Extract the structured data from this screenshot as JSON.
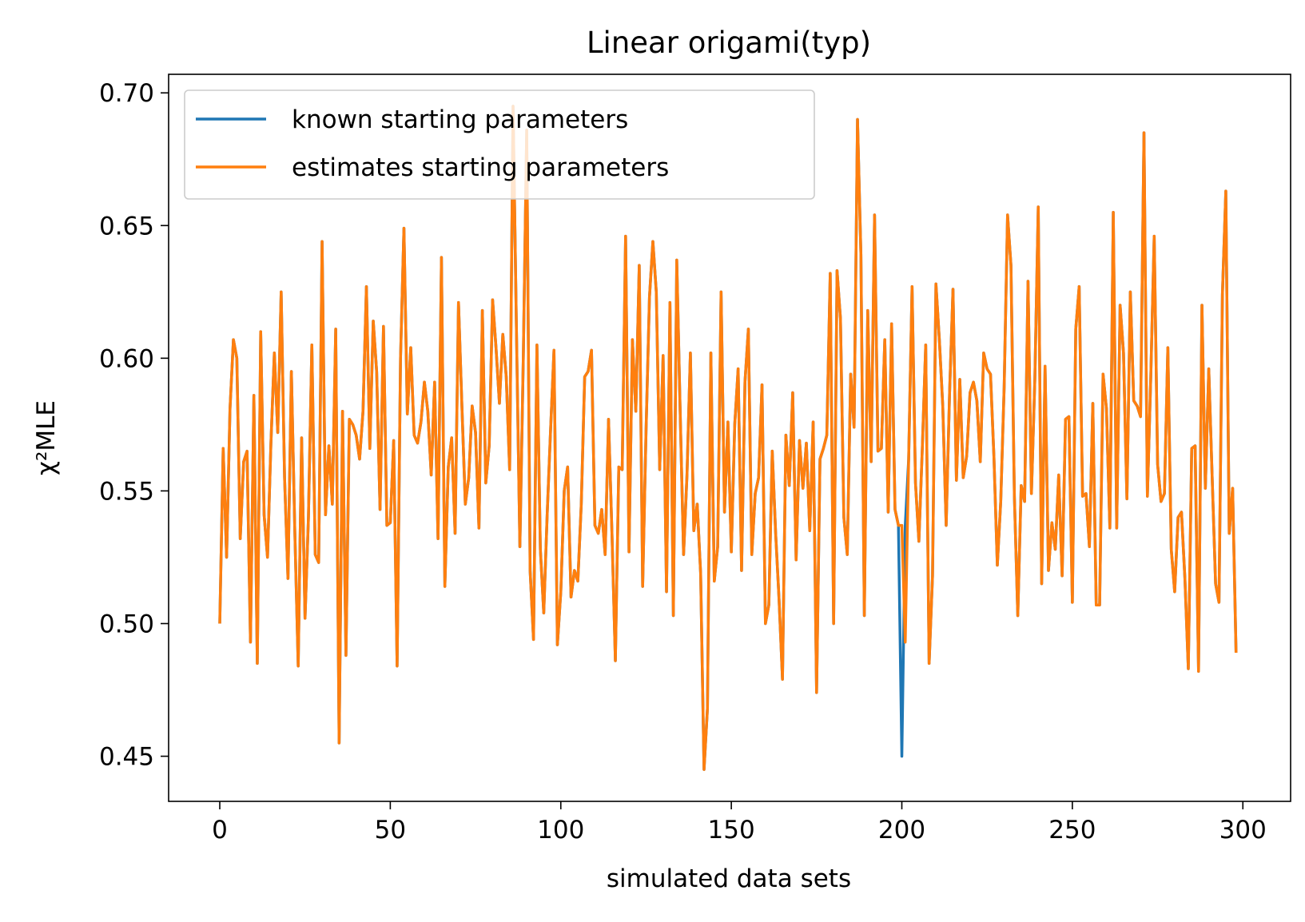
{
  "chart_data": {
    "type": "line",
    "title": "Linear origami(typ)",
    "xlabel": "simulated data sets",
    "ylabel": "χ²MLE",
    "xlim": [
      -15,
      314
    ],
    "ylim": [
      0.433,
      0.707
    ],
    "xticks": [
      0,
      50,
      100,
      150,
      200,
      250,
      300
    ],
    "yticks": [
      0.45,
      0.5,
      0.55,
      0.6,
      0.65,
      0.7
    ],
    "ytick_labels": [
      "0.45",
      "0.50",
      "0.55",
      "0.60",
      "0.65",
      "0.70"
    ],
    "grid": false,
    "legend_position": "top-left",
    "series": [
      {
        "name": "known starting parameters",
        "color": "#1f77b4",
        "y": [
          0.5,
          0.566,
          0.525,
          0.581,
          0.607,
          0.6,
          0.532,
          0.561,
          0.565,
          0.493,
          0.586,
          0.485,
          0.61,
          0.541,
          0.525,
          0.568,
          0.602,
          0.572,
          0.625,
          0.555,
          0.517,
          0.595,
          0.535,
          0.484,
          0.57,
          0.502,
          0.54,
          0.605,
          0.526,
          0.523,
          0.644,
          0.541,
          0.567,
          0.545,
          0.611,
          0.455,
          0.58,
          0.488,
          0.577,
          0.575,
          0.571,
          0.562,
          0.58,
          0.627,
          0.566,
          0.614,
          0.595,
          0.543,
          0.612,
          0.537,
          0.538,
          0.569,
          0.484,
          0.6,
          0.649,
          0.579,
          0.604,
          0.571,
          0.568,
          0.576,
          0.591,
          0.58,
          0.556,
          0.591,
          0.532,
          0.638,
          0.514,
          0.559,
          0.57,
          0.534,
          0.621,
          0.582,
          0.545,
          0.555,
          0.582,
          0.572,
          0.536,
          0.618,
          0.553,
          0.567,
          0.622,
          0.604,
          0.583,
          0.609,
          0.593,
          0.558,
          0.695,
          0.61,
          0.529,
          0.6,
          0.686,
          0.52,
          0.494,
          0.605,
          0.528,
          0.504,
          0.541,
          0.573,
          0.603,
          0.492,
          0.512,
          0.55,
          0.559,
          0.51,
          0.52,
          0.516,
          0.545,
          0.593,
          0.595,
          0.603,
          0.537,
          0.534,
          0.543,
          0.526,
          0.577,
          0.534,
          0.486,
          0.559,
          0.558,
          0.646,
          0.527,
          0.607,
          0.58,
          0.635,
          0.514,
          0.573,
          0.623,
          0.644,
          0.625,
          0.558,
          0.601,
          0.512,
          0.621,
          0.503,
          0.637,
          0.58,
          0.526,
          0.556,
          0.602,
          0.535,
          0.545,
          0.519,
          0.445,
          0.468,
          0.602,
          0.516,
          0.529,
          0.625,
          0.542,
          0.576,
          0.527,
          0.575,
          0.596,
          0.52,
          0.591,
          0.611,
          0.526,
          0.549,
          0.555,
          0.59,
          0.5,
          0.507,
          0.565,
          0.534,
          0.509,
          0.479,
          0.571,
          0.552,
          0.587,
          0.524,
          0.569,
          0.551,
          0.568,
          0.535,
          0.576,
          0.474,
          0.562,
          0.566,
          0.571,
          0.632,
          0.5,
          0.633,
          0.615,
          0.54,
          0.526,
          0.594,
          0.574,
          0.69,
          0.639,
          0.503,
          0.618,
          0.561,
          0.654,
          0.565,
          0.566,
          0.607,
          0.542,
          0.613,
          0.543,
          0.537,
          0.45,
          0.537,
          0.562,
          0.627,
          0.553,
          0.531,
          0.566,
          0.605,
          0.485,
          0.518,
          0.628,
          0.607,
          0.582,
          0.537,
          0.587,
          0.626,
          0.554,
          0.592,
          0.555,
          0.563,
          0.587,
          0.591,
          0.584,
          0.561,
          0.602,
          0.596,
          0.594,
          0.563,
          0.522,
          0.546,
          0.589,
          0.654,
          0.635,
          0.548,
          0.503,
          0.552,
          0.546,
          0.629,
          0.549,
          0.592,
          0.657,
          0.515,
          0.597,
          0.52,
          0.538,
          0.528,
          0.556,
          0.518,
          0.577,
          0.578,
          0.508,
          0.611,
          0.627,
          0.548,
          0.549,
          0.529,
          0.583,
          0.507,
          0.507,
          0.594,
          0.581,
          0.536,
          0.655,
          0.536,
          0.62,
          0.602,
          0.547,
          0.625,
          0.584,
          0.582,
          0.578,
          0.685,
          0.548,
          0.593,
          0.646,
          0.56,
          0.546,
          0.549,
          0.604,
          0.528,
          0.512,
          0.54,
          0.542,
          0.517,
          0.483,
          0.566,
          0.567,
          0.482,
          0.62,
          0.551,
          0.596,
          0.555,
          0.515,
          0.508,
          0.624,
          0.663,
          0.534,
          0.551,
          0.489
        ]
      },
      {
        "name": "estimates starting parameters",
        "color": "#ff7f0e",
        "y": [
          0.5,
          0.566,
          0.525,
          0.581,
          0.607,
          0.6,
          0.532,
          0.561,
          0.565,
          0.493,
          0.586,
          0.485,
          0.61,
          0.541,
          0.525,
          0.568,
          0.602,
          0.572,
          0.625,
          0.555,
          0.517,
          0.595,
          0.535,
          0.484,
          0.57,
          0.502,
          0.54,
          0.605,
          0.526,
          0.523,
          0.644,
          0.541,
          0.567,
          0.545,
          0.611,
          0.455,
          0.58,
          0.488,
          0.577,
          0.575,
          0.571,
          0.562,
          0.58,
          0.627,
          0.566,
          0.614,
          0.595,
          0.543,
          0.612,
          0.537,
          0.538,
          0.569,
          0.484,
          0.6,
          0.649,
          0.579,
          0.604,
          0.571,
          0.568,
          0.576,
          0.591,
          0.58,
          0.556,
          0.591,
          0.532,
          0.638,
          0.514,
          0.559,
          0.57,
          0.534,
          0.621,
          0.582,
          0.545,
          0.555,
          0.582,
          0.572,
          0.536,
          0.618,
          0.553,
          0.567,
          0.622,
          0.604,
          0.583,
          0.609,
          0.593,
          0.558,
          0.695,
          0.61,
          0.529,
          0.6,
          0.686,
          0.52,
          0.494,
          0.605,
          0.528,
          0.504,
          0.541,
          0.573,
          0.603,
          0.492,
          0.512,
          0.55,
          0.559,
          0.51,
          0.52,
          0.516,
          0.545,
          0.593,
          0.595,
          0.603,
          0.537,
          0.534,
          0.543,
          0.526,
          0.577,
          0.534,
          0.486,
          0.559,
          0.558,
          0.646,
          0.527,
          0.607,
          0.58,
          0.635,
          0.514,
          0.573,
          0.623,
          0.644,
          0.625,
          0.558,
          0.601,
          0.512,
          0.621,
          0.503,
          0.637,
          0.58,
          0.526,
          0.556,
          0.602,
          0.535,
          0.545,
          0.519,
          0.445,
          0.468,
          0.602,
          0.516,
          0.529,
          0.625,
          0.542,
          0.576,
          0.527,
          0.575,
          0.596,
          0.52,
          0.591,
          0.611,
          0.526,
          0.549,
          0.555,
          0.59,
          0.5,
          0.507,
          0.565,
          0.534,
          0.509,
          0.479,
          0.571,
          0.552,
          0.587,
          0.524,
          0.569,
          0.551,
          0.568,
          0.535,
          0.576,
          0.474,
          0.562,
          0.566,
          0.571,
          0.632,
          0.5,
          0.633,
          0.615,
          0.54,
          0.526,
          0.594,
          0.574,
          0.69,
          0.639,
          0.503,
          0.618,
          0.561,
          0.654,
          0.565,
          0.566,
          0.607,
          0.542,
          0.613,
          0.543,
          0.537,
          0.537,
          0.493,
          0.562,
          0.627,
          0.553,
          0.531,
          0.566,
          0.605,
          0.485,
          0.518,
          0.628,
          0.607,
          0.582,
          0.537,
          0.587,
          0.626,
          0.554,
          0.592,
          0.555,
          0.563,
          0.587,
          0.591,
          0.584,
          0.561,
          0.602,
          0.596,
          0.594,
          0.563,
          0.522,
          0.546,
          0.589,
          0.654,
          0.635,
          0.548,
          0.503,
          0.552,
          0.546,
          0.629,
          0.549,
          0.592,
          0.657,
          0.515,
          0.597,
          0.52,
          0.538,
          0.528,
          0.556,
          0.518,
          0.577,
          0.578,
          0.508,
          0.611,
          0.627,
          0.548,
          0.549,
          0.529,
          0.583,
          0.507,
          0.507,
          0.594,
          0.581,
          0.536,
          0.655,
          0.536,
          0.62,
          0.602,
          0.547,
          0.625,
          0.584,
          0.582,
          0.578,
          0.685,
          0.548,
          0.593,
          0.646,
          0.56,
          0.546,
          0.549,
          0.604,
          0.528,
          0.512,
          0.54,
          0.542,
          0.517,
          0.483,
          0.566,
          0.567,
          0.482,
          0.62,
          0.551,
          0.596,
          0.555,
          0.515,
          0.508,
          0.624,
          0.663,
          0.534,
          0.551,
          0.489
        ]
      }
    ]
  }
}
